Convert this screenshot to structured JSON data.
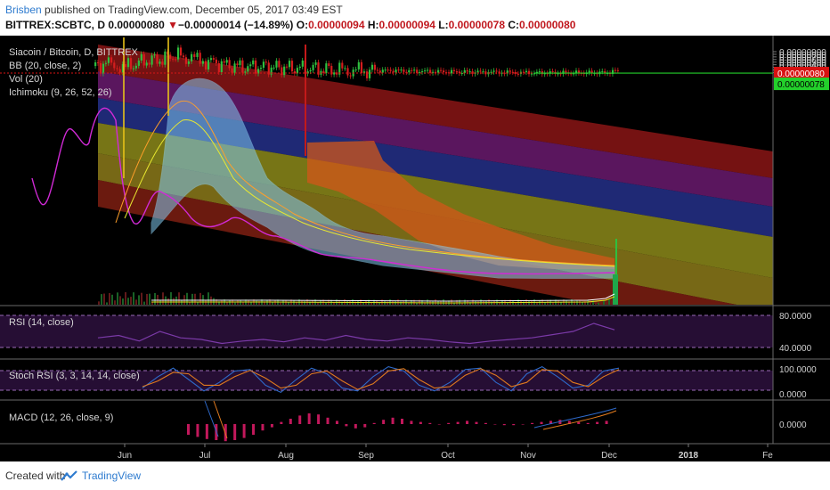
{
  "header": {
    "author": "Brisben",
    "published": "published on TradingView.com, December 05, 2017 03:49 EST",
    "symbol": "BITTREX:SCBTC, D",
    "last": "0.00000080",
    "change_arrow": "▼",
    "change": "−0.00000014 (−14.89%)",
    "ohlc": {
      "o_label": "O:",
      "o": "0.00000094",
      "h_label": "H:",
      "h": "0.00000094",
      "l_label": "L:",
      "l": "0.00000078",
      "c_label": "C:",
      "c": "0.00000080"
    }
  },
  "legend": {
    "title": "Siacoin / Bitcoin, D, BITTREX",
    "bb": "BB (20, close, 2)",
    "vol": "Vol (20)",
    "ichimoku": "Ichimoku (9, 26, 52, 26)"
  },
  "footer": {
    "created_with": "Created with",
    "brand": "TradingView"
  },
  "colors": {
    "background": "#000000",
    "up": "#2fbf3f",
    "down": "#d41e1e",
    "price_line": "#d71515",
    "current_label": "#d81111",
    "low_label": "#23d02b",
    "rsi_line": "#7b3aa8",
    "stoch_k": "#2e69c9",
    "stoch_d": "#e07a1e",
    "macd_hist": "#c2185b"
  },
  "chart_data": [
    {
      "type": "candlestick",
      "name_label": "Siacoin / Bitcoin, D, BITTREX",
      "xaxis_ticks": [
        "Jun",
        "Jul",
        "Aug",
        "Sep",
        "Oct",
        "Nov",
        "Dec",
        "2018",
        "Fe"
      ],
      "yaxis_ticks": [
        "0.00000900",
        "0.00000800",
        "0.00000700",
        "0.00000600",
        "0.00000500",
        "0.00000400",
        "0.00000300",
        "0.00000200",
        "0.00000100"
      ],
      "ylim": [
        1e-07,
        9e-06
      ],
      "last_price_label": "0.00000080",
      "low_price_label": "0.00000078",
      "close_path": [
        [
          "May 20",
          3.5e-06
        ],
        [
          "May 25",
          4.5e-06
        ],
        [
          "Jun 1",
          3e-06
        ],
        [
          "Jun 8",
          5.5e-06
        ],
        [
          "Jun 15",
          6e-06
        ],
        [
          "Jun 20",
          7.8e-06
        ],
        [
          "Jun 25",
          6.2e-06
        ],
        [
          "Jul 1",
          5.5e-06
        ],
        [
          "Jul 8",
          4e-06
        ],
        [
          "Jul 15",
          3e-06
        ],
        [
          "Jul 22",
          3.3e-06
        ],
        [
          "Aug 1",
          2.8e-06
        ],
        [
          "Aug 10",
          2.6e-06
        ],
        [
          "Aug 20",
          1.8e-06
        ],
        [
          "Sep 1",
          1.7e-06
        ],
        [
          "Sep 10",
          1.8e-06
        ],
        [
          "Sep 20",
          1.5e-06
        ],
        [
          "Oct 1",
          1.3e-06
        ],
        [
          "Oct 15",
          1.2e-06
        ],
        [
          "Nov 1",
          9e-07
        ],
        [
          "Nov 15",
          9e-07
        ],
        [
          "Dec 1",
          1e-06
        ],
        [
          "Dec 4",
          1.9e-06
        ],
        [
          "Dec 5",
          8e-07
        ]
      ]
    },
    {
      "type": "line",
      "name_label": "RSI (14, close)",
      "yaxis_ticks": [
        "80.0000",
        "40.0000"
      ],
      "ylim": [
        20,
        90
      ],
      "values": [
        52,
        55,
        48,
        60,
        52,
        50,
        45,
        48,
        50,
        47,
        52,
        49,
        55,
        50,
        48,
        52,
        50,
        47,
        45,
        48,
        50,
        52,
        56,
        60,
        70,
        62
      ]
    },
    {
      "type": "line",
      "name_label": "Stoch RSI (3, 3, 14, 14, close)",
      "yaxis_ticks": [
        "100.0000",
        "0.0000"
      ],
      "ylim": [
        0,
        100
      ],
      "series": [
        {
          "values": [
            20,
            60,
            90,
            50,
            10,
            40,
            80,
            85,
            30,
            5,
            50,
            90,
            70,
            20,
            10,
            60,
            95,
            80,
            30,
            10,
            40,
            85,
            90,
            40,
            10,
            70,
            95,
            60,
            20,
            30,
            80,
            90
          ]
        },
        {
          "values": [
            25,
            45,
            75,
            70,
            30,
            30,
            60,
            82,
            55,
            20,
            30,
            70,
            80,
            45,
            15,
            35,
            80,
            88,
            50,
            20,
            25,
            65,
            88,
            65,
            25,
            40,
            85,
            80,
            40,
            25,
            60,
            85
          ]
        }
      ]
    },
    {
      "type": "bar",
      "name_label": "MACD (12, 26, close, 9)",
      "yaxis_ticks": [
        "0.0000"
      ],
      "values": [
        -10,
        -12,
        -14,
        -15,
        -16,
        -15,
        -13,
        -10,
        -6,
        -3,
        2,
        5,
        8,
        10,
        9,
        6,
        3,
        -2,
        -4,
        -3,
        1,
        4,
        6,
        5,
        3,
        2,
        1,
        0,
        1,
        2,
        3,
        2,
        1,
        0,
        -1,
        -1,
        0,
        1,
        2,
        3,
        4,
        3,
        2,
        1,
        2,
        3
      ]
    }
  ]
}
